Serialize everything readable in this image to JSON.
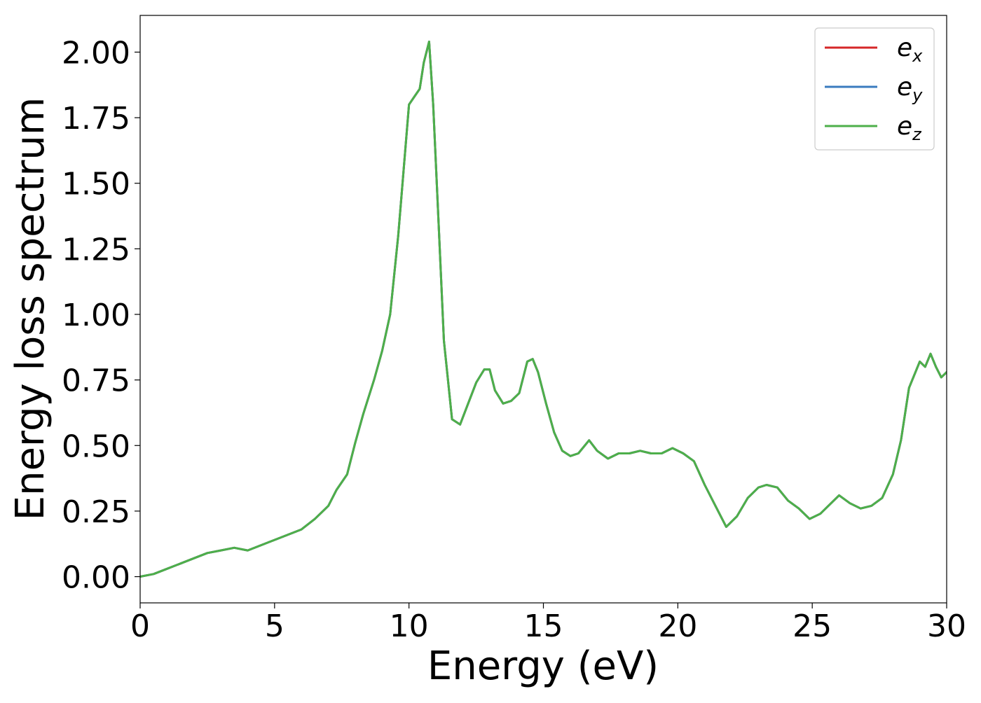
{
  "chart_data": {
    "type": "line",
    "title": "",
    "xlabel": "Energy (eV)",
    "ylabel": "Energy loss spectrum",
    "xlim": [
      0,
      30
    ],
    "ylim": [
      -0.1,
      2.14
    ],
    "x_ticks": [
      0,
      5,
      10,
      15,
      20,
      25,
      30
    ],
    "x_tick_labels": [
      "0",
      "5",
      "10",
      "15",
      "20",
      "25",
      "30"
    ],
    "y_ticks": [
      0,
      0.25,
      0.5,
      0.75,
      1.0,
      1.25,
      1.5,
      1.75,
      2.0
    ],
    "y_tick_labels": [
      "0.00",
      "0.25",
      "0.50",
      "0.75",
      "1.00",
      "1.25",
      "1.50",
      "1.75",
      "2.00"
    ],
    "grid": false,
    "legend_position": "top-right",
    "colors": {
      "e_x": "#d62728",
      "e_y": "#3a7bbf",
      "e_z": "#4daf4a"
    },
    "series": [
      {
        "name": "e_x",
        "legend_base": "e",
        "legend_sub": "x",
        "color": "#d62728",
        "x": [
          0,
          0.5,
          1,
          1.5,
          2,
          2.5,
          3,
          3.5,
          4,
          4.5,
          5,
          5.5,
          6,
          6.5,
          7,
          7.3,
          7.7,
          8,
          8.3,
          8.7,
          9,
          9.3,
          9.6,
          9.8,
          10,
          10.2,
          10.4,
          10.55,
          10.75,
          10.9,
          11.1,
          11.3,
          11.6,
          11.9,
          12.2,
          12.5,
          12.8,
          13,
          13.2,
          13.5,
          13.8,
          14.1,
          14.4,
          14.6,
          14.8,
          15.1,
          15.4,
          15.7,
          16,
          16.3,
          16.7,
          17,
          17.4,
          17.8,
          18.2,
          18.6,
          19,
          19.4,
          19.8,
          20.2,
          20.6,
          21,
          21.4,
          21.8,
          22.2,
          22.6,
          23,
          23.3,
          23.7,
          24.1,
          24.5,
          24.9,
          25.3,
          25.6,
          26,
          26.4,
          26.8,
          27.2,
          27.6,
          28,
          28.3,
          28.6,
          29,
          29.2,
          29.4,
          29.6,
          29.8,
          30
        ],
        "y": [
          0.0,
          0.01,
          0.03,
          0.05,
          0.07,
          0.09,
          0.1,
          0.11,
          0.1,
          0.12,
          0.14,
          0.16,
          0.18,
          0.22,
          0.27,
          0.33,
          0.39,
          0.51,
          0.62,
          0.75,
          0.86,
          1.0,
          1.3,
          1.55,
          1.8,
          1.83,
          1.86,
          1.96,
          2.04,
          1.8,
          1.35,
          0.9,
          0.6,
          0.58,
          0.66,
          0.74,
          0.79,
          0.79,
          0.71,
          0.66,
          0.67,
          0.7,
          0.82,
          0.83,
          0.78,
          0.66,
          0.55,
          0.48,
          0.46,
          0.47,
          0.52,
          0.48,
          0.45,
          0.47,
          0.47,
          0.48,
          0.47,
          0.47,
          0.49,
          0.47,
          0.44,
          0.35,
          0.27,
          0.19,
          0.23,
          0.3,
          0.34,
          0.35,
          0.34,
          0.29,
          0.26,
          0.22,
          0.24,
          0.27,
          0.31,
          0.28,
          0.26,
          0.27,
          0.3,
          0.39,
          0.52,
          0.72,
          0.82,
          0.8,
          0.85,
          0.8,
          0.76,
          0.78
        ]
      },
      {
        "name": "e_y",
        "legend_base": "e",
        "legend_sub": "y",
        "color": "#3a7bbf",
        "x": [
          0,
          0.5,
          1,
          1.5,
          2,
          2.5,
          3,
          3.5,
          4,
          4.5,
          5,
          5.5,
          6,
          6.5,
          7,
          7.3,
          7.7,
          8,
          8.3,
          8.7,
          9,
          9.3,
          9.6,
          9.8,
          10,
          10.2,
          10.4,
          10.55,
          10.75,
          10.9,
          11.1,
          11.3,
          11.6,
          11.9,
          12.2,
          12.5,
          12.8,
          13,
          13.2,
          13.5,
          13.8,
          14.1,
          14.4,
          14.6,
          14.8,
          15.1,
          15.4,
          15.7,
          16,
          16.3,
          16.7,
          17,
          17.4,
          17.8,
          18.2,
          18.6,
          19,
          19.4,
          19.8,
          20.2,
          20.6,
          21,
          21.4,
          21.8,
          22.2,
          22.6,
          23,
          23.3,
          23.7,
          24.1,
          24.5,
          24.9,
          25.3,
          25.6,
          26,
          26.4,
          26.8,
          27.2,
          27.6,
          28,
          28.3,
          28.6,
          29,
          29.2,
          29.4,
          29.6,
          29.8,
          30
        ],
        "y": [
          0.0,
          0.01,
          0.03,
          0.05,
          0.07,
          0.09,
          0.1,
          0.11,
          0.1,
          0.12,
          0.14,
          0.16,
          0.18,
          0.22,
          0.27,
          0.33,
          0.39,
          0.51,
          0.62,
          0.75,
          0.86,
          1.0,
          1.3,
          1.55,
          1.8,
          1.83,
          1.86,
          1.96,
          2.04,
          1.8,
          1.35,
          0.9,
          0.6,
          0.58,
          0.66,
          0.74,
          0.79,
          0.79,
          0.71,
          0.66,
          0.67,
          0.7,
          0.82,
          0.83,
          0.78,
          0.66,
          0.55,
          0.48,
          0.46,
          0.47,
          0.52,
          0.48,
          0.45,
          0.47,
          0.47,
          0.48,
          0.47,
          0.47,
          0.49,
          0.47,
          0.44,
          0.35,
          0.27,
          0.19,
          0.23,
          0.3,
          0.34,
          0.35,
          0.34,
          0.29,
          0.26,
          0.22,
          0.24,
          0.27,
          0.31,
          0.28,
          0.26,
          0.27,
          0.3,
          0.39,
          0.52,
          0.72,
          0.82,
          0.8,
          0.85,
          0.8,
          0.76,
          0.78
        ]
      },
      {
        "name": "e_z",
        "legend_base": "e",
        "legend_sub": "z",
        "color": "#4daf4a",
        "x": [
          0,
          0.5,
          1,
          1.5,
          2,
          2.5,
          3,
          3.5,
          4,
          4.5,
          5,
          5.5,
          6,
          6.5,
          7,
          7.3,
          7.7,
          8,
          8.3,
          8.7,
          9,
          9.3,
          9.6,
          9.8,
          10,
          10.2,
          10.4,
          10.55,
          10.75,
          10.9,
          11.1,
          11.3,
          11.6,
          11.9,
          12.2,
          12.5,
          12.8,
          13,
          13.2,
          13.5,
          13.8,
          14.1,
          14.4,
          14.6,
          14.8,
          15.1,
          15.4,
          15.7,
          16,
          16.3,
          16.7,
          17,
          17.4,
          17.8,
          18.2,
          18.6,
          19,
          19.4,
          19.8,
          20.2,
          20.6,
          21,
          21.4,
          21.8,
          22.2,
          22.6,
          23,
          23.3,
          23.7,
          24.1,
          24.5,
          24.9,
          25.3,
          25.6,
          26,
          26.4,
          26.8,
          27.2,
          27.6,
          28,
          28.3,
          28.6,
          29,
          29.2,
          29.4,
          29.6,
          29.8,
          30
        ],
        "y": [
          0.0,
          0.01,
          0.03,
          0.05,
          0.07,
          0.09,
          0.1,
          0.11,
          0.1,
          0.12,
          0.14,
          0.16,
          0.18,
          0.22,
          0.27,
          0.33,
          0.39,
          0.51,
          0.62,
          0.75,
          0.86,
          1.0,
          1.3,
          1.55,
          1.8,
          1.83,
          1.86,
          1.96,
          2.04,
          1.8,
          1.35,
          0.9,
          0.6,
          0.58,
          0.66,
          0.74,
          0.79,
          0.79,
          0.71,
          0.66,
          0.67,
          0.7,
          0.82,
          0.83,
          0.78,
          0.66,
          0.55,
          0.48,
          0.46,
          0.47,
          0.52,
          0.48,
          0.45,
          0.47,
          0.47,
          0.48,
          0.47,
          0.47,
          0.49,
          0.47,
          0.44,
          0.35,
          0.27,
          0.19,
          0.23,
          0.3,
          0.34,
          0.35,
          0.34,
          0.29,
          0.26,
          0.22,
          0.24,
          0.27,
          0.31,
          0.28,
          0.26,
          0.27,
          0.3,
          0.39,
          0.52,
          0.72,
          0.82,
          0.8,
          0.85,
          0.8,
          0.76,
          0.78
        ]
      }
    ]
  }
}
